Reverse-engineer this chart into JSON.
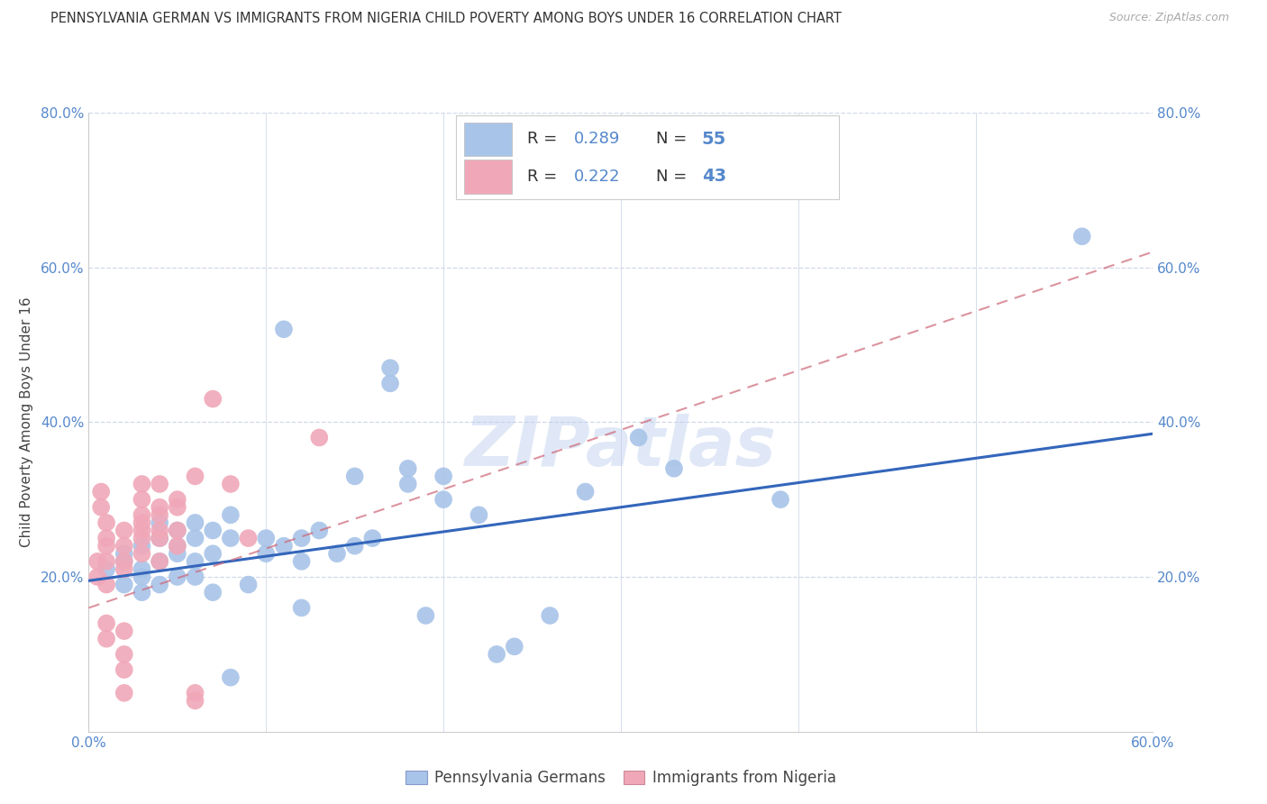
{
  "title": "PENNSYLVANIA GERMAN VS IMMIGRANTS FROM NIGERIA CHILD POVERTY AMONG BOYS UNDER 16 CORRELATION CHART",
  "source": "Source: ZipAtlas.com",
  "ylabel": "Child Poverty Among Boys Under 16",
  "xlim": [
    0.0,
    0.6
  ],
  "ylim": [
    0.0,
    0.8
  ],
  "xticks": [
    0.0,
    0.1,
    0.2,
    0.3,
    0.4,
    0.5,
    0.6
  ],
  "yticks": [
    0.0,
    0.2,
    0.4,
    0.6,
    0.8
  ],
  "xtick_labels_bottom": [
    "0.0%",
    "",
    "",
    "",
    "",
    "",
    "60.0%"
  ],
  "ytick_labels_left": [
    "",
    "20.0%",
    "40.0%",
    "60.0%",
    "80.0%"
  ],
  "ytick_labels_right": [
    "",
    "20.0%",
    "40.0%",
    "60.0%",
    "80.0%"
  ],
  "legend1_R": "0.289",
  "legend1_N": "55",
  "legend2_R": "0.222",
  "legend2_N": "43",
  "series1_color": "#a8c4e8",
  "series2_color": "#f0a8b8",
  "line1_color": "#3366bb",
  "line2_color": "#cc6677",
  "watermark": "ZIPatlas",
  "background_color": "#ffffff",
  "grid_color": "#d0d8e8",
  "tick_color": "#5588cc",
  "text_color": "#444444",
  "series1_label": "Pennsylvania Germans",
  "series2_label": "Immigrants from Nigeria",
  "series1_points": [
    [
      0.01,
      0.21
    ],
    [
      0.02,
      0.19
    ],
    [
      0.02,
      0.23
    ],
    [
      0.02,
      0.22
    ],
    [
      0.03,
      0.2
    ],
    [
      0.03,
      0.24
    ],
    [
      0.03,
      0.21
    ],
    [
      0.03,
      0.18
    ],
    [
      0.04,
      0.25
    ],
    [
      0.04,
      0.27
    ],
    [
      0.04,
      0.19
    ],
    [
      0.04,
      0.22
    ],
    [
      0.05,
      0.24
    ],
    [
      0.05,
      0.2
    ],
    [
      0.05,
      0.23
    ],
    [
      0.05,
      0.26
    ],
    [
      0.06,
      0.2
    ],
    [
      0.06,
      0.25
    ],
    [
      0.06,
      0.27
    ],
    [
      0.06,
      0.22
    ],
    [
      0.07,
      0.26
    ],
    [
      0.07,
      0.18
    ],
    [
      0.07,
      0.23
    ],
    [
      0.08,
      0.25
    ],
    [
      0.08,
      0.28
    ],
    [
      0.08,
      0.07
    ],
    [
      0.09,
      0.19
    ],
    [
      0.1,
      0.25
    ],
    [
      0.1,
      0.23
    ],
    [
      0.11,
      0.52
    ],
    [
      0.11,
      0.24
    ],
    [
      0.12,
      0.25
    ],
    [
      0.12,
      0.22
    ],
    [
      0.12,
      0.16
    ],
    [
      0.13,
      0.26
    ],
    [
      0.14,
      0.23
    ],
    [
      0.15,
      0.24
    ],
    [
      0.15,
      0.33
    ],
    [
      0.16,
      0.25
    ],
    [
      0.17,
      0.45
    ],
    [
      0.17,
      0.47
    ],
    [
      0.18,
      0.34
    ],
    [
      0.18,
      0.32
    ],
    [
      0.19,
      0.15
    ],
    [
      0.2,
      0.3
    ],
    [
      0.2,
      0.33
    ],
    [
      0.22,
      0.28
    ],
    [
      0.23,
      0.1
    ],
    [
      0.24,
      0.11
    ],
    [
      0.26,
      0.15
    ],
    [
      0.28,
      0.31
    ],
    [
      0.31,
      0.38
    ],
    [
      0.33,
      0.34
    ],
    [
      0.39,
      0.3
    ],
    [
      0.56,
      0.64
    ]
  ],
  "series2_points": [
    [
      0.005,
      0.2
    ],
    [
      0.005,
      0.22
    ],
    [
      0.007,
      0.29
    ],
    [
      0.007,
      0.31
    ],
    [
      0.01,
      0.19
    ],
    [
      0.01,
      0.22
    ],
    [
      0.01,
      0.24
    ],
    [
      0.01,
      0.25
    ],
    [
      0.01,
      0.27
    ],
    [
      0.01,
      0.12
    ],
    [
      0.01,
      0.14
    ],
    [
      0.02,
      0.21
    ],
    [
      0.02,
      0.22
    ],
    [
      0.02,
      0.24
    ],
    [
      0.02,
      0.26
    ],
    [
      0.02,
      0.1
    ],
    [
      0.02,
      0.13
    ],
    [
      0.02,
      0.08
    ],
    [
      0.02,
      0.05
    ],
    [
      0.03,
      0.23
    ],
    [
      0.03,
      0.25
    ],
    [
      0.03,
      0.26
    ],
    [
      0.03,
      0.27
    ],
    [
      0.03,
      0.28
    ],
    [
      0.03,
      0.3
    ],
    [
      0.03,
      0.32
    ],
    [
      0.04,
      0.22
    ],
    [
      0.04,
      0.28
    ],
    [
      0.04,
      0.32
    ],
    [
      0.04,
      0.26
    ],
    [
      0.04,
      0.29
    ],
    [
      0.04,
      0.25
    ],
    [
      0.05,
      0.26
    ],
    [
      0.05,
      0.24
    ],
    [
      0.05,
      0.3
    ],
    [
      0.05,
      0.29
    ],
    [
      0.06,
      0.33
    ],
    [
      0.06,
      0.05
    ],
    [
      0.06,
      0.04
    ],
    [
      0.07,
      0.43
    ],
    [
      0.08,
      0.32
    ],
    [
      0.09,
      0.25
    ],
    [
      0.13,
      0.38
    ]
  ],
  "line1_x": [
    0.0,
    0.6
  ],
  "line1_y": [
    0.195,
    0.385
  ],
  "line2_x": [
    0.0,
    0.6
  ],
  "line2_y": [
    0.16,
    0.62
  ]
}
